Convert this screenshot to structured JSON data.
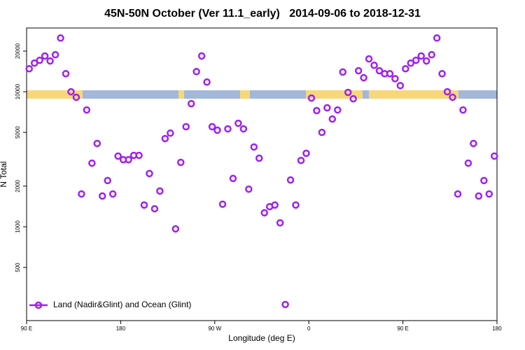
{
  "chart_data": {
    "type": "scatter",
    "title": "45N-50N October (Ver 11.1_early)   2014-09-06 to 2018-12-31",
    "x_label": "Longitude (deg E)",
    "y_label": "N Total",
    "log_y": true,
    "legend": "bottom-left",
    "xlim": [
      90,
      540
    ],
    "xticks": [
      {
        "value": 90,
        "label": "90 E"
      },
      180,
      {
        "value": 270,
        "label": "90 W"
      },
      {
        "value": 360,
        "label": "0"
      },
      {
        "value": 450,
        "label": "90 E"
      },
      {
        "value": 540,
        "label": "180"
      }
    ],
    "ylim": [
      202,
      29650
    ],
    "yticks": [
      500,
      1000,
      2000,
      5000,
      10000,
      20000
    ],
    "series": [
      {
        "name": "Land (Nadir&Glint) and Ocean (Glint)",
        "color": "#a020f0",
        "x": [
          92.5,
          97.5,
          102.5,
          107.5,
          112.5,
          117.5,
          122.5,
          127.5,
          132.5,
          137.5,
          142.5,
          147.5,
          152.5,
          157.5,
          162.5,
          167.5,
          172.5,
          177.5,
          182.5,
          187.5,
          192.5,
          197.5,
          202.5,
          207.5,
          212.5,
          217.5,
          222.5,
          227.5,
          232.5,
          237.5,
          242.5,
          247.5,
          252.5,
          257.5,
          262.5,
          267.5,
          272.5,
          277.5,
          282.5,
          287.5,
          292.5,
          297.5,
          302.5,
          307.5,
          312.5,
          317.5,
          322.5,
          327.5,
          332.5,
          337.5,
          342.5,
          347.5,
          352.5,
          357.5,
          362.5,
          367.5,
          372.5,
          377.5,
          382.5,
          387.5,
          392.5,
          397.5,
          402.5,
          407.5,
          412.5,
          417.5,
          422.5,
          427.5,
          432.5,
          437.5,
          442.5,
          447.5,
          452.5,
          457.5,
          462.5,
          467.5,
          472.5,
          477.5,
          482.5,
          487.5,
          492.5,
          497.5,
          502.5,
          507.5,
          512.5,
          517.5,
          522.5,
          527.5,
          532.5,
          537.5
        ],
        "values": [
          14800,
          16300,
          17100,
          18400,
          16900,
          18800,
          25000,
          13600,
          10000,
          9100,
          1750,
          7330,
          2960,
          4140,
          1690,
          2200,
          1750,
          3340,
          3140,
          3140,
          3380,
          3380,
          1450,
          2480,
          1360,
          1840,
          4500,
          4940,
          965,
          3000,
          5510,
          8160,
          14100,
          18400,
          11800,
          5510,
          5190,
          1470,
          5310,
          2280,
          5840,
          5310,
          1900,
          3900,
          3220,
          1270,
          1410,
          1450,
          1070,
          266,
          2220,
          1450,
          3100,
          3500,
          8980,
          7250,
          5000,
          7600,
          6280,
          7330,
          14000,
          9890,
          8870,
          14300,
          12700,
          17500,
          15700,
          14300,
          13600,
          13600,
          12500,
          11100,
          14800,
          16300,
          17100,
          18400,
          16900,
          18800,
          25000,
          13600,
          10000,
          9100,
          1750,
          7330,
          2960,
          4140,
          1690,
          2200,
          1750,
          3340
        ]
      }
    ]
  }
}
